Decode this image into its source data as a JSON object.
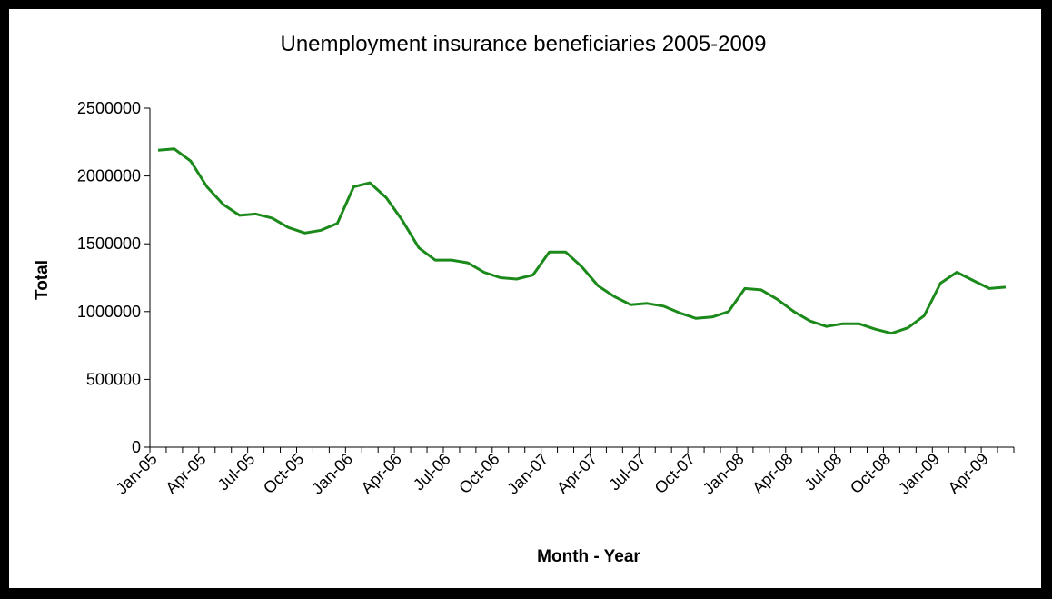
{
  "chart_data": {
    "type": "line",
    "title": "Unemployment insurance beneficiaries 2005-2009",
    "xlabel": "Month - Year",
    "ylabel": "Total",
    "ylim": [
      0,
      2500000
    ],
    "yticks": [
      0,
      500000,
      1000000,
      1500000,
      2000000,
      2500000
    ],
    "x_tick_labels": [
      "Jan-05",
      "Apr-05",
      "Jul-05",
      "Oct-05",
      "Jan-06",
      "Apr-06",
      "Jul-06",
      "Oct-06",
      "Jan-07",
      "Apr-07",
      "Jul-07",
      "Oct-07",
      "Jan-08",
      "Apr-08",
      "Jul-08",
      "Oct-08",
      "Jan-09",
      "Apr-09"
    ],
    "grid": false,
    "legend": "none",
    "line_color": "#1b8a1b",
    "x": [
      "Jan-05",
      "Feb-05",
      "Mar-05",
      "Apr-05",
      "May-05",
      "Jun-05",
      "Jul-05",
      "Aug-05",
      "Sep-05",
      "Oct-05",
      "Nov-05",
      "Dec-05",
      "Jan-06",
      "Feb-06",
      "Mar-06",
      "Apr-06",
      "May-06",
      "Jun-06",
      "Jul-06",
      "Aug-06",
      "Sep-06",
      "Oct-06",
      "Nov-06",
      "Dec-06",
      "Jan-07",
      "Feb-07",
      "Mar-07",
      "Apr-07",
      "May-07",
      "Jun-07",
      "Jul-07",
      "Aug-07",
      "Sep-07",
      "Oct-07",
      "Nov-07",
      "Dec-07",
      "Jan-08",
      "Feb-08",
      "Mar-08",
      "Apr-08",
      "May-08",
      "Jun-08",
      "Jul-08",
      "Aug-08",
      "Sep-08",
      "Oct-08",
      "Nov-08",
      "Dec-08",
      "Jan-09",
      "Feb-09",
      "Mar-09",
      "Apr-09",
      "May-09"
    ],
    "values": [
      2190000,
      2200000,
      2110000,
      1920000,
      1790000,
      1710000,
      1720000,
      1690000,
      1620000,
      1580000,
      1600000,
      1650000,
      1920000,
      1950000,
      1840000,
      1670000,
      1470000,
      1380000,
      1380000,
      1360000,
      1290000,
      1250000,
      1240000,
      1270000,
      1440000,
      1440000,
      1330000,
      1190000,
      1110000,
      1050000,
      1060000,
      1040000,
      990000,
      950000,
      960000,
      1000000,
      1170000,
      1160000,
      1090000,
      1000000,
      930000,
      890000,
      910000,
      910000,
      870000,
      840000,
      880000,
      970000,
      1210000,
      1290000,
      1230000,
      1170000,
      1180000
    ]
  }
}
